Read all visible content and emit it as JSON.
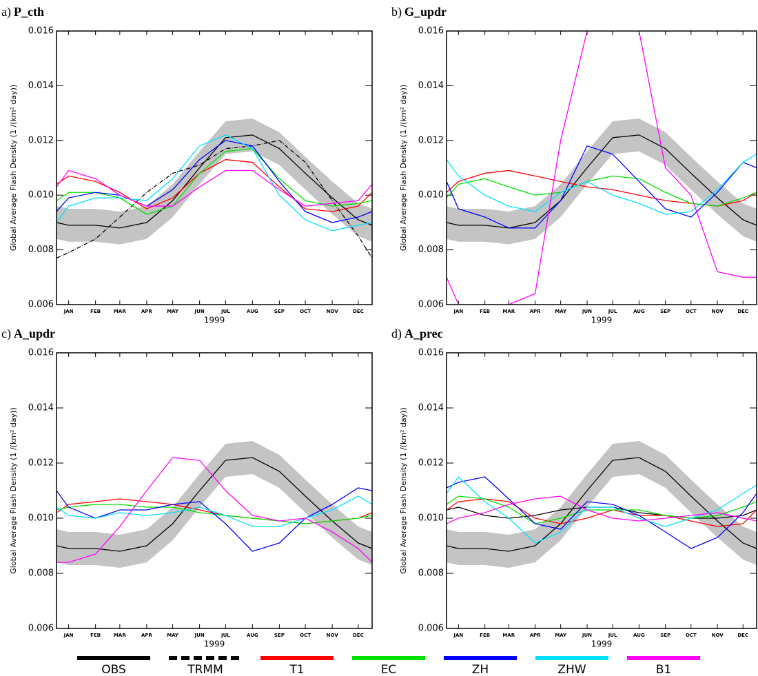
{
  "chart_data": [
    {
      "type": "line",
      "label": "a)",
      "title": "P_cth",
      "xlabel": "1999",
      "ylabel": "Global Average Flash Density (1 /(km² day))",
      "x": [
        1,
        15,
        46,
        74,
        105,
        135,
        166,
        196,
        227,
        258,
        288,
        319,
        349,
        365
      ],
      "xlim": [
        1,
        365
      ],
      "xticks": [
        {
          "value": 15,
          "label": "JAN"
        },
        {
          "value": 46,
          "label": "FEB"
        },
        {
          "value": 74,
          "label": "MAR"
        },
        {
          "value": 105,
          "label": "APR"
        },
        {
          "value": 135,
          "label": "MAY"
        },
        {
          "value": 166,
          "label": "JUN"
        },
        {
          "value": 196,
          "label": "JUL"
        },
        {
          "value": 227,
          "label": "AUG"
        },
        {
          "value": 258,
          "label": "SEP"
        },
        {
          "value": 288,
          "label": "OCT"
        },
        {
          "value": 319,
          "label": "NOV"
        },
        {
          "value": 349,
          "label": "DEC"
        }
      ],
      "ylim": [
        0.006,
        0.016
      ],
      "yticks": [
        0.006,
        0.008,
        {
          "value": 0.01,
          "label": "0.010"
        },
        0.012,
        0.014,
        0.016
      ],
      "series": [
        {
          "color": "#000000",
          "values": [
            0.009,
            0.0089,
            0.0089,
            0.0088,
            0.009,
            0.0098,
            0.011,
            0.0121,
            0.0122,
            0.0117,
            0.0108,
            0.0099,
            0.0091,
            0.0089
          ],
          "lower": [
            0.0084,
            0.0083,
            0.0083,
            0.0082,
            0.0084,
            0.0092,
            0.0104,
            0.0115,
            0.0116,
            0.0111,
            0.0102,
            0.0093,
            0.0085,
            0.0083
          ],
          "upper": [
            0.0096,
            0.0095,
            0.0095,
            0.0094,
            0.0096,
            0.0104,
            0.0116,
            0.0127,
            0.0128,
            0.0123,
            0.0114,
            0.0105,
            0.0097,
            0.0095
          ]
        },
        {
          "color": "#000000",
          "dash": "6 2 1 2",
          "values": [
            0.0077,
            0.0079,
            0.0084,
            0.0092,
            0.0101,
            0.0108,
            0.0111,
            0.0117,
            0.0118,
            0.012,
            0.0112,
            0.0098,
            0.0085,
            0.0077
          ]
        },
        {
          "color": "#ff0000",
          "values": [
            0.0104,
            0.0107,
            0.0105,
            0.0101,
            0.0095,
            0.0099,
            0.0108,
            0.0113,
            0.0112,
            0.0103,
            0.0095,
            0.0094,
            0.0096,
            0.0101
          ]
        },
        {
          "color": "#00e000",
          "values": [
            0.0098,
            0.0101,
            0.0101,
            0.0099,
            0.0093,
            0.0096,
            0.0108,
            0.0116,
            0.0117,
            0.0106,
            0.0098,
            0.0096,
            0.0097,
            0.0098
          ]
        },
        {
          "color": "#0000ff",
          "values": [
            0.0094,
            0.0099,
            0.0101,
            0.01,
            0.0096,
            0.0102,
            0.0113,
            0.012,
            0.0118,
            0.0105,
            0.0094,
            0.009,
            0.0092,
            0.0094
          ]
        },
        {
          "color": "#00e0ff",
          "values": [
            0.009,
            0.0096,
            0.0099,
            0.0099,
            0.0098,
            0.0106,
            0.0118,
            0.0122,
            0.0117,
            0.01,
            0.0091,
            0.0087,
            0.0089,
            0.009
          ]
        },
        {
          "color": "#ff00ff",
          "values": [
            0.0103,
            0.0109,
            0.0106,
            0.01,
            0.0096,
            0.0096,
            0.0103,
            0.0109,
            0.0109,
            0.0102,
            0.0096,
            0.0097,
            0.0098,
            0.0104
          ]
        }
      ]
    },
    {
      "type": "line",
      "label": "b)",
      "title": "G_updr",
      "xlabel": "1999",
      "ylabel": "Global Average Flash Density (1 /(km² day))",
      "x": [
        1,
        15,
        46,
        74,
        105,
        135,
        166,
        196,
        227,
        258,
        288,
        319,
        349,
        365
      ],
      "xlim": [
        1,
        365
      ],
      "xticks": [
        {
          "value": 15,
          "label": "JAN"
        },
        {
          "value": 46,
          "label": "FEB"
        },
        {
          "value": 74,
          "label": "MAR"
        },
        {
          "value": 105,
          "label": "APR"
        },
        {
          "value": 135,
          "label": "MAY"
        },
        {
          "value": 166,
          "label": "JUN"
        },
        {
          "value": 196,
          "label": "JUL"
        },
        {
          "value": 227,
          "label": "AUG"
        },
        {
          "value": 258,
          "label": "SEP"
        },
        {
          "value": 288,
          "label": "OCT"
        },
        {
          "value": 319,
          "label": "NOV"
        },
        {
          "value": 349,
          "label": "DEC"
        }
      ],
      "ylim": [
        0.006,
        0.016
      ],
      "yticks": [
        0.006,
        0.008,
        {
          "value": 0.01,
          "label": "0.010"
        },
        0.012,
        0.014,
        0.016
      ],
      "series": [
        {
          "color": "#000000",
          "values": [
            0.009,
            0.0089,
            0.0089,
            0.0088,
            0.009,
            0.0098,
            0.011,
            0.0121,
            0.0122,
            0.0117,
            0.0108,
            0.0099,
            0.0091,
            0.0089
          ],
          "lower": [
            0.0084,
            0.0083,
            0.0083,
            0.0082,
            0.0084,
            0.0092,
            0.0104,
            0.0115,
            0.0116,
            0.0111,
            0.0102,
            0.0093,
            0.0085,
            0.0083
          ],
          "upper": [
            0.0096,
            0.0095,
            0.0095,
            0.0094,
            0.0096,
            0.0104,
            0.0116,
            0.0127,
            0.0128,
            0.0123,
            0.0114,
            0.0105,
            0.0097,
            0.0095
          ]
        },
        {
          "color": "#ff0000",
          "values": [
            0.0101,
            0.0105,
            0.0108,
            0.0109,
            0.0107,
            0.0105,
            0.0103,
            0.0102,
            0.01,
            0.0098,
            0.0097,
            0.0096,
            0.0098,
            0.0101
          ]
        },
        {
          "color": "#00e000",
          "values": [
            0.0099,
            0.0104,
            0.0106,
            0.0103,
            0.01,
            0.0101,
            0.0105,
            0.0107,
            0.0106,
            0.0101,
            0.0097,
            0.0096,
            0.0099,
            0.0101
          ]
        },
        {
          "color": "#0000ff",
          "values": [
            0.0105,
            0.0095,
            0.0092,
            0.0088,
            0.0088,
            0.0098,
            0.0118,
            0.0115,
            0.0105,
            0.0095,
            0.0092,
            0.0101,
            0.0112,
            0.011
          ]
        },
        {
          "color": "#00e0ff",
          "values": [
            0.0113,
            0.0107,
            0.01,
            0.0096,
            0.0094,
            0.0101,
            0.0105,
            0.01,
            0.0097,
            0.0093,
            0.0094,
            0.0102,
            0.0112,
            0.0115
          ]
        },
        {
          "color": "#ff00ff",
          "values": [
            0.007,
            0.006,
            0.0055,
            0.006,
            0.0064,
            0.012,
            0.016,
            0.0175,
            0.016,
            0.011,
            0.01,
            0.0072,
            0.007,
            0.007
          ]
        }
      ]
    },
    {
      "type": "line",
      "label": "c)",
      "title": "A_updr",
      "xlabel": "1999",
      "ylabel": "Global Average Flash Density (1 /(km² day))",
      "x": [
        1,
        15,
        46,
        74,
        105,
        135,
        166,
        196,
        227,
        258,
        288,
        319,
        349,
        365
      ],
      "xlim": [
        1,
        365
      ],
      "xticks": [
        {
          "value": 15,
          "label": "JAN"
        },
        {
          "value": 46,
          "label": "FEB"
        },
        {
          "value": 74,
          "label": "MAR"
        },
        {
          "value": 105,
          "label": "APR"
        },
        {
          "value": 135,
          "label": "MAY"
        },
        {
          "value": 166,
          "label": "JUN"
        },
        {
          "value": 196,
          "label": "JUL"
        },
        {
          "value": 227,
          "label": "AUG"
        },
        {
          "value": 258,
          "label": "SEP"
        },
        {
          "value": 288,
          "label": "OCT"
        },
        {
          "value": 319,
          "label": "NOV"
        },
        {
          "value": 349,
          "label": "DEC"
        }
      ],
      "ylim": [
        0.006,
        0.016
      ],
      "yticks": [
        0.006,
        0.008,
        {
          "value": 0.01,
          "label": "0.010"
        },
        0.012,
        0.014,
        0.016
      ],
      "series": [
        {
          "color": "#000000",
          "values": [
            0.009,
            0.0089,
            0.0089,
            0.0088,
            0.009,
            0.0098,
            0.011,
            0.0121,
            0.0122,
            0.0117,
            0.0108,
            0.0099,
            0.0091,
            0.0089
          ],
          "lower": [
            0.0084,
            0.0083,
            0.0083,
            0.0082,
            0.0084,
            0.0092,
            0.0104,
            0.0115,
            0.0116,
            0.0111,
            0.0102,
            0.0093,
            0.0085,
            0.0083
          ],
          "upper": [
            0.0096,
            0.0095,
            0.0095,
            0.0094,
            0.0096,
            0.0104,
            0.0116,
            0.0127,
            0.0128,
            0.0123,
            0.0114,
            0.0105,
            0.0097,
            0.0095
          ]
        },
        {
          "color": "#ff0000",
          "values": [
            0.0102,
            0.0105,
            0.0106,
            0.0107,
            0.0106,
            0.0105,
            0.0103,
            0.0101,
            0.01,
            0.0099,
            0.0098,
            0.0099,
            0.01,
            0.0102
          ]
        },
        {
          "color": "#00e000",
          "values": [
            0.0103,
            0.0104,
            0.0105,
            0.0105,
            0.0104,
            0.0104,
            0.0102,
            0.0101,
            0.01,
            0.0099,
            0.0098,
            0.0099,
            0.01,
            0.0101
          ]
        },
        {
          "color": "#0000ff",
          "values": [
            0.011,
            0.0104,
            0.01,
            0.0103,
            0.0103,
            0.0105,
            0.0106,
            0.0098,
            0.0088,
            0.0091,
            0.01,
            0.0105,
            0.0111,
            0.011
          ]
        },
        {
          "color": "#00e0ff",
          "values": [
            0.0104,
            0.0101,
            0.01,
            0.0102,
            0.0101,
            0.0102,
            0.0104,
            0.0101,
            0.0097,
            0.0097,
            0.01,
            0.0103,
            0.0108,
            0.0105
          ]
        },
        {
          "color": "#ff00ff",
          "values": [
            0.0084,
            0.0084,
            0.0087,
            0.0097,
            0.011,
            0.0122,
            0.0121,
            0.011,
            0.0101,
            0.0099,
            0.01,
            0.0095,
            0.0089,
            0.0084
          ]
        }
      ]
    },
    {
      "type": "line",
      "label": "d)",
      "title": "A_prec",
      "xlabel": "1999",
      "ylabel": "Global Average Flash Density (1 /(km² day))",
      "x": [
        1,
        15,
        46,
        74,
        105,
        135,
        166,
        196,
        227,
        258,
        288,
        319,
        349,
        365
      ],
      "xlim": [
        1,
        365
      ],
      "xticks": [
        {
          "value": 15,
          "label": "JAN"
        },
        {
          "value": 46,
          "label": "FEB"
        },
        {
          "value": 74,
          "label": "MAR"
        },
        {
          "value": 105,
          "label": "APR"
        },
        {
          "value": 135,
          "label": "MAY"
        },
        {
          "value": 166,
          "label": "JUN"
        },
        {
          "value": 196,
          "label": "JUL"
        },
        {
          "value": 227,
          "label": "AUG"
        },
        {
          "value": 258,
          "label": "SEP"
        },
        {
          "value": 288,
          "label": "OCT"
        },
        {
          "value": 319,
          "label": "NOV"
        },
        {
          "value": 349,
          "label": "DEC"
        }
      ],
      "ylim": [
        0.006,
        0.016
      ],
      "yticks": [
        0.006,
        0.008,
        {
          "value": 0.01,
          "label": "0.010"
        },
        0.012,
        0.014,
        0.016
      ],
      "series": [
        {
          "color": "#000000",
          "values": [
            0.009,
            0.0089,
            0.0089,
            0.0088,
            0.009,
            0.0098,
            0.011,
            0.0121,
            0.0122,
            0.0117,
            0.0108,
            0.0099,
            0.0091,
            0.0089
          ],
          "lower": [
            0.0084,
            0.0083,
            0.0083,
            0.0082,
            0.0084,
            0.0092,
            0.0104,
            0.0115,
            0.0116,
            0.0111,
            0.0102,
            0.0093,
            0.0085,
            0.0083
          ],
          "upper": [
            0.0096,
            0.0095,
            0.0095,
            0.0094,
            0.0096,
            0.0104,
            0.0116,
            0.0127,
            0.0128,
            0.0123,
            0.0114,
            0.0105,
            0.0097,
            0.0095
          ]
        },
        {
          "color": "#000000",
          "values": [
            0.0103,
            0.0104,
            0.0101,
            0.01,
            0.0101,
            0.0103,
            0.0104,
            0.0104,
            0.0102,
            0.0101,
            0.01,
            0.01,
            0.0101,
            0.0103
          ]
        },
        {
          "color": "#ff0000",
          "values": [
            0.0103,
            0.0106,
            0.0107,
            0.0106,
            0.01,
            0.0098,
            0.01,
            0.0103,
            0.0101,
            0.0101,
            0.0099,
            0.0097,
            0.0098,
            0.0103
          ]
        },
        {
          "color": "#00e000",
          "values": [
            0.0105,
            0.0108,
            0.0107,
            0.0104,
            0.0098,
            0.01,
            0.0103,
            0.0103,
            0.0103,
            0.0101,
            0.01,
            0.0101,
            0.0104,
            0.0106
          ]
        },
        {
          "color": "#0000ff",
          "values": [
            0.0111,
            0.0113,
            0.0115,
            0.0107,
            0.0098,
            0.0096,
            0.0106,
            0.0105,
            0.0101,
            0.0095,
            0.0089,
            0.0093,
            0.0102,
            0.0109
          ]
        },
        {
          "color": "#00e0ff",
          "values": [
            0.0109,
            0.0115,
            0.0106,
            0.01,
            0.0091,
            0.0095,
            0.0104,
            0.0104,
            0.01,
            0.0097,
            0.01,
            0.0103,
            0.0109,
            0.0112
          ]
        },
        {
          "color": "#ff00ff",
          "values": [
            0.0098,
            0.01,
            0.0102,
            0.0105,
            0.0107,
            0.0108,
            0.0103,
            0.01,
            0.0099,
            0.01,
            0.0101,
            0.0102,
            0.01,
            0.0099
          ]
        }
      ]
    }
  ],
  "legend": [
    {
      "name": "OBS",
      "color": "#000000"
    },
    {
      "name": "TRMM",
      "color": "#000000",
      "dash": "12 6"
    },
    {
      "name": "T1",
      "color": "#ff0000"
    },
    {
      "name": "EC",
      "color": "#00e000"
    },
    {
      "name": "ZH",
      "color": "#0000ff"
    },
    {
      "name": "ZHW",
      "color": "#00e0ff"
    },
    {
      "name": "B1",
      "color": "#ff00ff"
    }
  ]
}
